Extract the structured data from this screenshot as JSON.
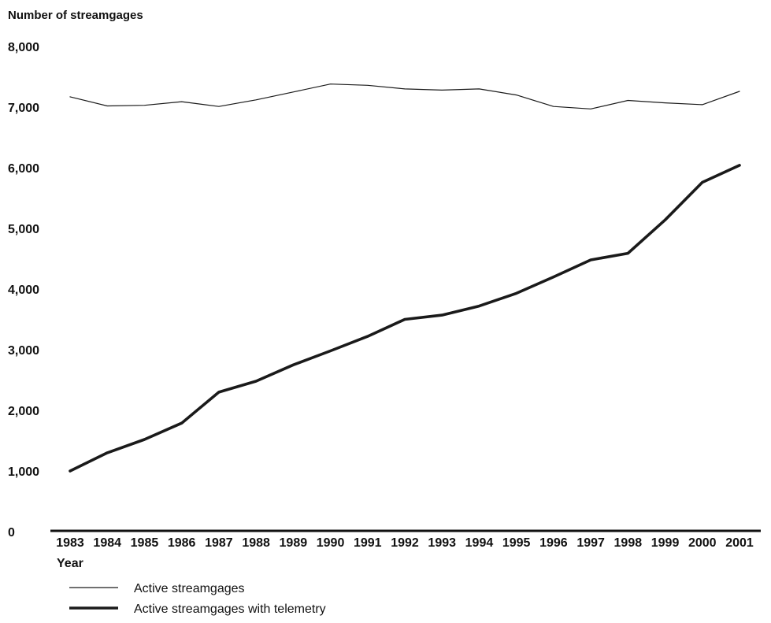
{
  "chart_data": {
    "type": "line",
    "ylabel": "Number of streamgages",
    "xlabel": "Year",
    "ylim": [
      0,
      8000
    ],
    "y_ticks": [
      "0",
      "1,000",
      "2,000",
      "3,000",
      "4,000",
      "5,000",
      "6,000",
      "7,000",
      "8,000"
    ],
    "categories": [
      "1983",
      "1984",
      "1985",
      "1986",
      "1987",
      "1988",
      "1989",
      "1990",
      "1991",
      "1992",
      "1993",
      "1994",
      "1995",
      "1996",
      "1997",
      "1998",
      "1999",
      "2000",
      "2001"
    ],
    "series": [
      {
        "name": "Active streamgages",
        "color": "#1a1a1a",
        "line_weight": "thin",
        "values": [
          7170,
          7020,
          7030,
          7090,
          7010,
          7120,
          7250,
          7380,
          7360,
          7300,
          7280,
          7300,
          7200,
          7010,
          6970,
          7110,
          7070,
          7040,
          7260
        ]
      },
      {
        "name": "Active streamgages with telemetry",
        "color": "#1a1a1a",
        "line_weight": "thick",
        "values": [
          1000,
          1300,
          1520,
          1790,
          2300,
          2480,
          2750,
          2980,
          3220,
          3500,
          3570,
          3720,
          3930,
          4200,
          4480,
          4590,
          5140,
          5760,
          6040
        ]
      }
    ],
    "grid": false,
    "legend": "bottom-left"
  }
}
